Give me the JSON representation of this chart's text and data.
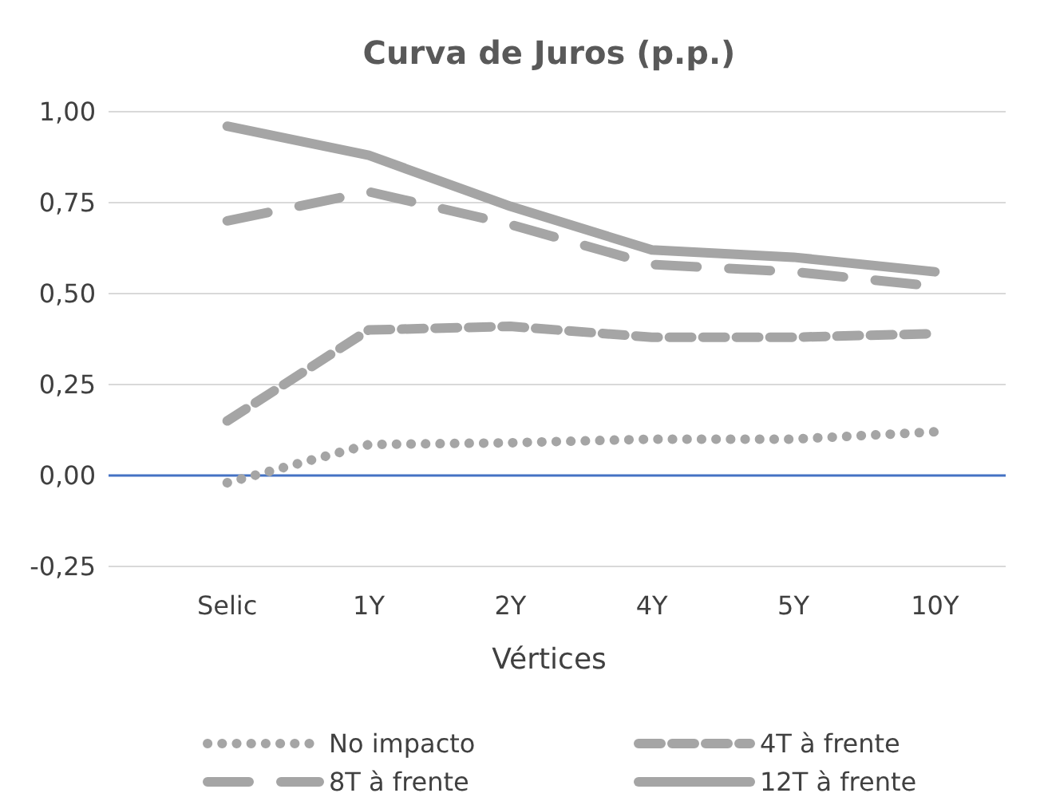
{
  "chart_data": {
    "type": "line",
    "title": "Curva de Juros (p.p.)",
    "xlabel": "Vértices",
    "categories": [
      "Selic",
      "1Y",
      "2Y",
      "4Y",
      "5Y",
      "10Y"
    ],
    "series": [
      {
        "name": "No impacto",
        "color": "#a5a5a5",
        "line_style": "dotted",
        "values": [
          -0.02,
          0.085,
          0.09,
          0.1,
          0.1,
          0.12
        ]
      },
      {
        "name": "4T à frente",
        "color": "#a5a5a5",
        "line_style": "dashed",
        "values": [
          0.15,
          0.4,
          0.41,
          0.38,
          0.38,
          0.39
        ]
      },
      {
        "name": "8T à frente",
        "color": "#a5a5a5",
        "line_style": "longdash",
        "values": [
          0.7,
          0.78,
          0.69,
          0.58,
          0.56,
          0.52
        ]
      },
      {
        "name": "12T à frente",
        "color": "#a5a5a5",
        "line_style": "solid",
        "values": [
          0.96,
          0.88,
          0.74,
          0.62,
          0.6,
          0.56
        ]
      }
    ],
    "ylim": [
      -0.25,
      1
    ],
    "ref_lines": [
      {
        "axis": "y",
        "value": 0,
        "color": "#4472c4"
      }
    ],
    "yticks": [
      {
        "value": -0.25,
        "label": "-0,25"
      },
      {
        "value": 0,
        "label": "0,00"
      },
      {
        "value": 0.25,
        "label": "0,25"
      },
      {
        "value": 0.5,
        "label": "0,50"
      },
      {
        "value": 0.75,
        "label": "0,75"
      },
      {
        "value": 1,
        "label": "1,00"
      }
    ],
    "grid": "y",
    "legend": "bottom"
  }
}
